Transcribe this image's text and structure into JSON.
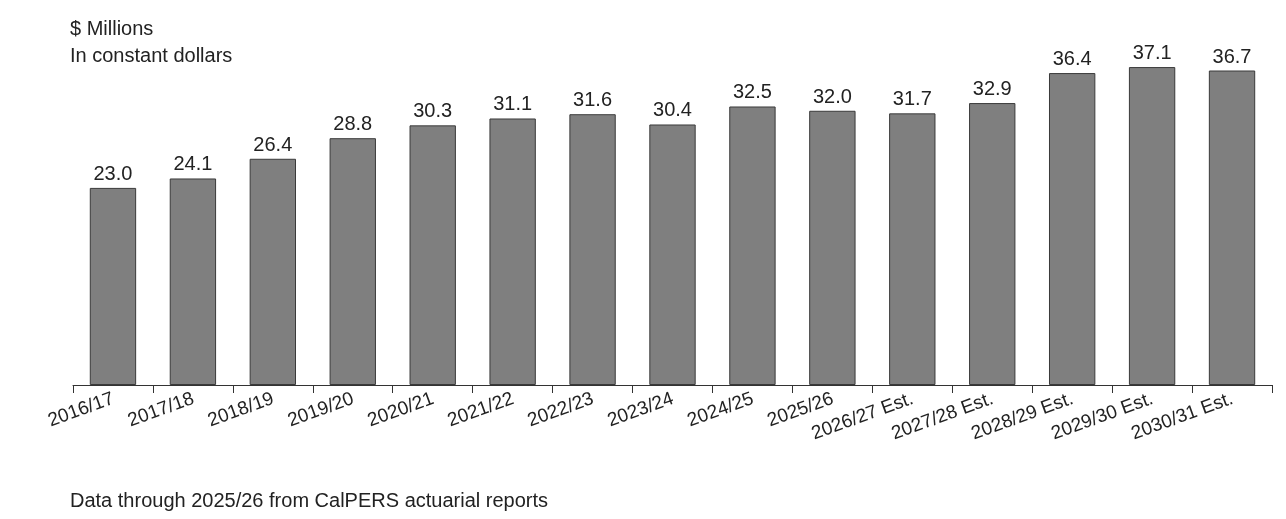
{
  "chart_data": {
    "type": "bar",
    "categories": [
      "2016/17",
      "2017/18",
      "2018/19",
      "2019/20",
      "2020/21",
      "2021/22",
      "2022/23",
      "2023/24",
      "2024/25",
      "2025/26",
      "2026/27 Est.",
      "2027/28 Est.",
      "2028/29 Est.",
      "2029/30 Est.",
      "2030/31 Est."
    ],
    "values": [
      23.0,
      24.1,
      26.4,
      28.8,
      30.3,
      31.1,
      31.6,
      30.4,
      32.5,
      32.0,
      31.7,
      32.9,
      36.4,
      37.1,
      36.7
    ],
    "color": "#7f7f7f",
    "value_labels": [
      "23.0",
      "24.1",
      "26.4",
      "28.8",
      "30.3",
      "31.1",
      "31.6",
      "30.4",
      "32.5",
      "32.0",
      "31.7",
      "32.9",
      "36.4",
      "37.1",
      "36.7"
    ],
    "grid": false,
    "annotations": [
      "$ Millions",
      "In constant dollars",
      "Data through 2025/26 from CalPERS actuarial reports"
    ]
  }
}
